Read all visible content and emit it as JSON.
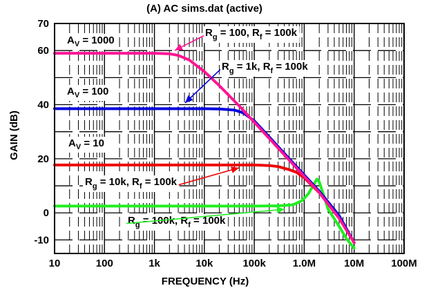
{
  "chart_data": {
    "type": "line",
    "title": "(A) AC sims.dat (active)",
    "xlabel": "FREQUENCY (Hz)",
    "ylabel": "GAIN (dB)",
    "xscale": "log",
    "xlim": [
      10,
      10000000
    ],
    "ylim": [
      -15,
      70
    ],
    "grid": true,
    "x_ticks": [
      {
        "value": 10,
        "label": "10"
      },
      {
        "value": 100,
        "label": "100"
      },
      {
        "value": 1000,
        "label": "1k"
      },
      {
        "value": 10000,
        "label": "10k"
      },
      {
        "value": 100000,
        "label": "100k"
      },
      {
        "value": 1000000,
        "label": "1.0M"
      },
      {
        "value": 10000000,
        "label": "10M"
      },
      {
        "value": 100000000,
        "label": "100M"
      }
    ],
    "y_ticks": [
      {
        "value": 70,
        "label": "70"
      },
      {
        "value": 60,
        "label": "60"
      },
      {
        "value": 40,
        "label": "40"
      },
      {
        "value": 20,
        "label": "20"
      },
      {
        "value": 0,
        "label": "0"
      },
      {
        "value": -10,
        "label": "-10"
      }
    ],
    "series": [
      {
        "name": "Rg = 100, Rf = 100k",
        "color": "#ff1493",
        "x": [
          10,
          1000,
          2000,
          3000,
          5000,
          10000,
          20000,
          50000,
          100000,
          200000,
          500000,
          1000000,
          2000000,
          5000000,
          10000000
        ],
        "y": [
          59.0,
          59.0,
          58.8,
          58.2,
          56.5,
          52.2,
          47.0,
          39.5,
          33.5,
          27.5,
          19.5,
          13.5,
          7.5,
          -2.0,
          -11.0
        ]
      },
      {
        "name": "Rg = 1k, Rf = 100k",
        "color": "#0000dd",
        "x": [
          10,
          10000,
          20000,
          40000,
          60000,
          100000,
          200000,
          500000,
          1000000,
          2000000,
          5000000,
          10000000
        ],
        "y": [
          38.5,
          38.5,
          38.4,
          38.0,
          37.0,
          34.0,
          28.0,
          20.0,
          14.0,
          8.0,
          -1.0,
          -11.0
        ]
      },
      {
        "name": "Rg = 10k, Rf = 100k",
        "color": "#ee0000",
        "x": [
          10,
          100000,
          200000,
          300000,
          500000,
          700000,
          1000000,
          2000000,
          5000000,
          10000000
        ],
        "y": [
          17.7,
          17.7,
          17.5,
          17.1,
          16.0,
          15.0,
          13.0,
          7.5,
          -1.5,
          -11.0
        ]
      },
      {
        "name": "Rg = 100k, Rf = 100k",
        "color": "#22ee22",
        "x": [
          10,
          100000,
          300000,
          600000,
          900000,
          1200000,
          1500000,
          1800000,
          2000000,
          2500000,
          3000000,
          5000000,
          7000000,
          10000000
        ],
        "y": [
          2.5,
          2.5,
          2.6,
          3.0,
          4.5,
          7.0,
          10.0,
          12.5,
          11.5,
          6.0,
          1.5,
          -5.0,
          -9.5,
          -13.0
        ]
      }
    ],
    "annotations": [
      {
        "base": "A",
        "sub": "V",
        "rest": " = 1000"
      },
      {
        "base": "A",
        "sub": "V",
        "rest": " = 100"
      },
      {
        "base": "A",
        "sub": "V",
        "rest": " = 10"
      },
      {
        "series": 0,
        "a": "R",
        "as": "g",
        "b": " = 100, R",
        "bs": "f",
        "c": " = 100k"
      },
      {
        "series": 1,
        "a": "R",
        "as": "g",
        "b": " = 1k, R",
        "bs": "f",
        "c": " = 100k"
      },
      {
        "series": 2,
        "a": "R",
        "as": "g",
        "b": " = 10k, R",
        "bs": "f",
        "c": " = 100k"
      },
      {
        "series": 3,
        "a": "R",
        "as": "g",
        "b": " = 100k, R",
        "bs": "f",
        "c": " = 100k"
      }
    ]
  }
}
